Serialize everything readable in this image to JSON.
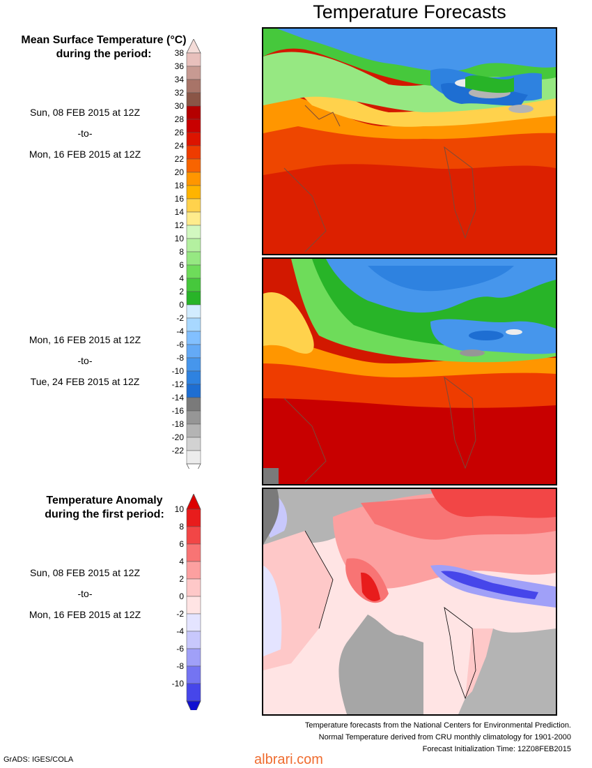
{
  "title": "Temperature Forecasts",
  "mean": {
    "header_line1": "Mean Surface Temperature (°C)",
    "header_line2": "during the period:",
    "period1": {
      "from": "Sun, 08 FEB 2015 at 12Z",
      "sep": "-to-",
      "to": "Mon, 16 FEB 2015 at 12Z"
    },
    "period2": {
      "from": "Mon, 16 FEB 2015 at 12Z",
      "sep": "-to-",
      "to": "Tue, 24 FEB 2015 at 12Z"
    },
    "scale": [
      {
        "v": "38",
        "c": "#e8c0bc"
      },
      {
        "v": "36",
        "c": "#c79a92"
      },
      {
        "v": "34",
        "c": "#a87468"
      },
      {
        "v": "32",
        "c": "#8a5546"
      },
      {
        "v": "30",
        "c": "#b40000"
      },
      {
        "v": "28",
        "c": "#c80000"
      },
      {
        "v": "26",
        "c": "#dc1400"
      },
      {
        "v": "24",
        "c": "#ee3c00"
      },
      {
        "v": "22",
        "c": "#f86400"
      },
      {
        "v": "20",
        "c": "#ff9600"
      },
      {
        "v": "18",
        "c": "#ffb400"
      },
      {
        "v": "16",
        "c": "#ffd24c"
      },
      {
        "v": "14",
        "c": "#ffec8c"
      },
      {
        "v": "12",
        "c": "#d2f8c0"
      },
      {
        "v": "10",
        "c": "#b4f0a0"
      },
      {
        "v": "8",
        "c": "#96e882"
      },
      {
        "v": "6",
        "c": "#6edc5a"
      },
      {
        "v": "4",
        "c": "#46c83c"
      },
      {
        "v": "2",
        "c": "#28b428"
      },
      {
        "v": "0",
        "c": "#d2ecff"
      },
      {
        "v": "-2",
        "c": "#a8d8ff"
      },
      {
        "v": "-4",
        "c": "#82c0ff"
      },
      {
        "v": "-6",
        "c": "#64aaf6"
      },
      {
        "v": "-8",
        "c": "#4696ec"
      },
      {
        "v": "-10",
        "c": "#2e82e0"
      },
      {
        "v": "-12",
        "c": "#1e6ed2"
      },
      {
        "v": "-14",
        "c": "#7a7a7a"
      },
      {
        "v": "-16",
        "c": "#969696"
      },
      {
        "v": "-18",
        "c": "#b4b4b4"
      },
      {
        "v": "-20",
        "c": "#d2d2d2"
      },
      {
        "v": "-22",
        "c": "#ececec"
      }
    ],
    "top_cap_color": "#f4dcd8",
    "bottom_cap_color": "#ffffff"
  },
  "anomaly": {
    "header_line1": "Temperature Anomaly",
    "header_line2": "during the first period:",
    "period": {
      "from": "Sun, 08 FEB 2015 at 12Z",
      "sep": "-to-",
      "to": "Mon, 16 FEB 2015 at 12Z"
    },
    "scale": [
      {
        "v": "10",
        "c": "#e81c1c"
      },
      {
        "v": "8",
        "c": "#f24646"
      },
      {
        "v": "6",
        "c": "#f87474"
      },
      {
        "v": "4",
        "c": "#fca0a0"
      },
      {
        "v": "2",
        "c": "#fec8c8"
      },
      {
        "v": "0",
        "c": "#ffe4e4"
      },
      {
        "v": "-2",
        "c": "#e4e4ff"
      },
      {
        "v": "-4",
        "c": "#c8c8fc"
      },
      {
        "v": "-6",
        "c": "#a0a0f8"
      },
      {
        "v": "-8",
        "c": "#7474f2"
      },
      {
        "v": "-10",
        "c": "#4646ea"
      }
    ],
    "top_cap_color": "#dc0000",
    "bottom_cap_color": "#1010d0"
  },
  "footer": {
    "line1": "Temperature forecasts from the National Centers for Environmental Prediction.",
    "line2": "Normal Temperature derived from CRU monthly climatology for 1901-2000",
    "line3": "Forecast Initialization Time: 12Z08FEB2015"
  },
  "credit": "GrADS: IGES/COLA",
  "watermark": "albrari.com"
}
